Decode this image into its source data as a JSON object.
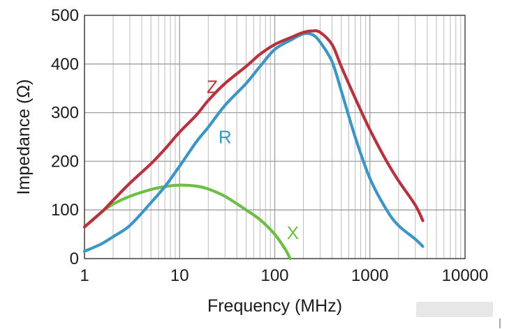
{
  "chart_data": {
    "type": "line",
    "title": "",
    "xlabel": "Frequency (MHz)",
    "ylabel": "Impedance (Ω)",
    "x_scale": "log",
    "xlim": [
      1,
      10000
    ],
    "ylim": [
      0,
      500
    ],
    "grid": true,
    "x_ticks": [
      1,
      10,
      100,
      1000,
      10000
    ],
    "x_tick_labels": [
      "1",
      "10",
      "100",
      "1000",
      "10000"
    ],
    "y_ticks": [
      0,
      100,
      200,
      300,
      400,
      500
    ],
    "y_tick_labels": [
      "0",
      "100",
      "200",
      "300",
      "400",
      "500"
    ],
    "series": [
      {
        "name": "Z",
        "color": "#b5323e",
        "points": [
          [
            1,
            65
          ],
          [
            1.5,
            95
          ],
          [
            2,
            120
          ],
          [
            3,
            155
          ],
          [
            5,
            195
          ],
          [
            7,
            225
          ],
          [
            10,
            260
          ],
          [
            15,
            295
          ],
          [
            20,
            325
          ],
          [
            30,
            360
          ],
          [
            50,
            395
          ],
          [
            70,
            420
          ],
          [
            100,
            440
          ],
          [
            150,
            455
          ],
          [
            200,
            465
          ],
          [
            250,
            468
          ],
          [
            300,
            465
          ],
          [
            400,
            440
          ],
          [
            500,
            395
          ],
          [
            700,
            330
          ],
          [
            1000,
            265
          ],
          [
            1500,
            200
          ],
          [
            2000,
            160
          ],
          [
            3000,
            110
          ],
          [
            3600,
            78
          ]
        ]
      },
      {
        "name": "R",
        "color": "#3b95c6",
        "points": [
          [
            1,
            15
          ],
          [
            1.5,
            30
          ],
          [
            2,
            45
          ],
          [
            3,
            68
          ],
          [
            5,
            115
          ],
          [
            7,
            148
          ],
          [
            10,
            190
          ],
          [
            15,
            240
          ],
          [
            20,
            270
          ],
          [
            30,
            315
          ],
          [
            50,
            360
          ],
          [
            70,
            395
          ],
          [
            100,
            430
          ],
          [
            150,
            450
          ],
          [
            200,
            462
          ],
          [
            250,
            460
          ],
          [
            300,
            445
          ],
          [
            400,
            405
          ],
          [
            500,
            345
          ],
          [
            700,
            250
          ],
          [
            1000,
            165
          ],
          [
            1500,
            100
          ],
          [
            2000,
            68
          ],
          [
            3000,
            40
          ],
          [
            3600,
            25
          ]
        ]
      },
      {
        "name": "X",
        "color": "#6cbe45",
        "points": [
          [
            1,
            65
          ],
          [
            1.5,
            95
          ],
          [
            2,
            112
          ],
          [
            3,
            128
          ],
          [
            5,
            142
          ],
          [
            7,
            148
          ],
          [
            10,
            151
          ],
          [
            15,
            149
          ],
          [
            20,
            143
          ],
          [
            30,
            128
          ],
          [
            50,
            100
          ],
          [
            70,
            80
          ],
          [
            100,
            50
          ],
          [
            130,
            18
          ],
          [
            145,
            0
          ]
        ]
      }
    ]
  }
}
